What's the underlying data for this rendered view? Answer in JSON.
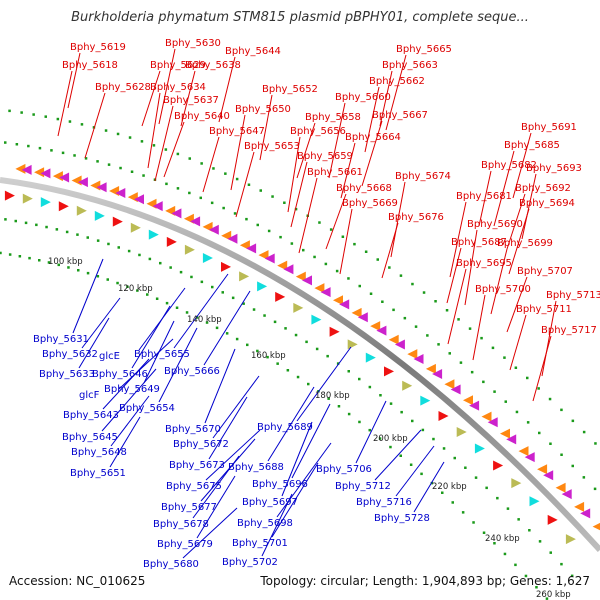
{
  "header": {
    "title": "Burkholderia phymatum STM815 plasmid pBPHY01, complete seque..."
  },
  "footer": {
    "accession": "Accession: NC_010625",
    "summary": "Topology: circular; Length: 1,904,893 bp; Genes: 1,627"
  },
  "colors": {
    "forward_label": "#dd0000",
    "reverse_label": "#0000cc",
    "backbone": "#888888",
    "gc_skew_dots": "#1a9a1a"
  },
  "scale": {
    "tick_labels": [
      "100 kbp",
      "120 kbp",
      "140 kbp",
      "160 kbp",
      "180 kbp",
      "200 kbp",
      "220 kbp",
      "240 kbp",
      "260 kbp"
    ]
  },
  "forward_genes": [
    "Bphy_5619",
    "Bphy_5618",
    "Bphy_5630",
    "Bphy_5629",
    "Bphy_5628",
    "Bphy_5634",
    "Bphy_5638",
    "Bphy_5644",
    "Bphy_5637",
    "Bphy_5640",
    "Bphy_5652",
    "Bphy_5650",
    "Bphy_5647",
    "Bphy_5653",
    "Bphy_5665",
    "Bphy_5663",
    "Bphy_5662",
    "Bphy_5660",
    "Bphy_5658",
    "Bphy_5667",
    "Bphy_5656",
    "Bphy_5664",
    "Bphy_5659",
    "Bphy_5661",
    "Bphy_5668",
    "Bphy_5669",
    "Bphy_5674",
    "Bphy_5676",
    "Bphy_5691",
    "Bphy_5685",
    "Bphy_5682",
    "Bphy_5693",
    "Bphy_5681",
    "Bphy_5692",
    "Bphy_5694",
    "Bphy_5690",
    "Bphy_5687",
    "Bphy_5699",
    "Bphy_5695",
    "Bphy_5707",
    "Bphy_5700",
    "Bphy_5713",
    "Bphy_5711",
    "Bphy_5717"
  ],
  "reverse_genes": [
    "Bphy_5631",
    "Bphy_5632",
    "glcE",
    "Bphy_5655",
    "Bphy_5633",
    "Bphy_5646",
    "Bphy_5666",
    "glcF",
    "Bphy_5649",
    "Bphy_5654",
    "Bphy_5643",
    "Bphy_5645",
    "Bphy_5670",
    "Bphy_5648",
    "Bphy_5672",
    "Bphy_5689",
    "Bphy_5651",
    "Bphy_5673",
    "Bphy_5688",
    "Bphy_5675",
    "Bphy_5706",
    "Bphy_5696",
    "Bphy_5712",
    "Bphy_5677",
    "Bphy_5697",
    "Bphy_5716",
    "Bphy_5678",
    "Bphy_5698",
    "Bphy_5728",
    "Bphy_5679",
    "Bphy_5701",
    "Bphy_5680",
    "Bphy_5702"
  ]
}
